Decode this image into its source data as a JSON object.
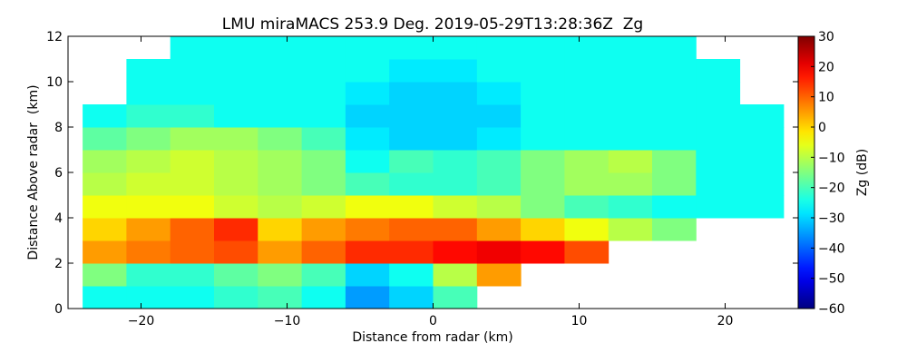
{
  "chart_data": {
    "type": "heatmap",
    "title": "LMU miraMACS 253.9 Deg. 2019-05-29T13:28:36Z  Zg",
    "x_label": "Distance from radar (km)",
    "y_label": "Distance Above radar  (km)",
    "colorbar_label": "Zg (dB)",
    "colormap": "jet",
    "xlim": [
      -25,
      25
    ],
    "ylim": [
      0,
      12
    ],
    "clim": [
      -60,
      30
    ],
    "xticks": [
      {
        "value": -20,
        "label": "−20"
      },
      {
        "value": -10,
        "label": "−10"
      },
      0,
      10,
      20
    ],
    "yticks": [
      0,
      2,
      4,
      6,
      8,
      10,
      12
    ],
    "cticks": [
      {
        "value": -60,
        "label": "−60"
      },
      {
        "value": -50,
        "label": "−50"
      },
      {
        "value": -40,
        "label": "−40"
      },
      {
        "value": -30,
        "label": "−30"
      },
      {
        "value": -20,
        "label": "−20"
      },
      {
        "value": -10,
        "label": "−10"
      },
      0,
      10,
      20,
      30
    ],
    "x": [
      -22.5,
      -19.5,
      -16.5,
      -13.5,
      -10.5,
      -7.5,
      -4.5,
      -1.5,
      1.5,
      4.5,
      7.5,
      10.5,
      13.5,
      16.5,
      19.5,
      22.5
    ],
    "y": [
      0.5,
      1.5,
      2.5,
      3.5,
      4.5,
      5.5,
      6.5,
      7.5,
      8.5,
      9.5,
      10.5,
      11.5
    ],
    "z": [
      [
        -25,
        -25,
        -25,
        -22,
        -20,
        -25,
        -35,
        -30,
        -20,
        null,
        null,
        null,
        null,
        null,
        null,
        null
      ],
      [
        -15,
        -22,
        -22,
        -18,
        -15,
        -20,
        -30,
        -25,
        -10,
        5,
        null,
        null,
        null,
        null,
        null,
        null
      ],
      [
        5,
        8,
        10,
        12,
        5,
        10,
        15,
        15,
        18,
        20,
        18,
        12,
        null,
        null,
        null,
        null
      ],
      [
        0,
        5,
        10,
        15,
        0,
        5,
        8,
        10,
        10,
        5,
        0,
        -5,
        -10,
        -15,
        null,
        null
      ],
      [
        -5,
        -5,
        -5,
        -8,
        -10,
        -8,
        -5,
        -5,
        -8,
        -10,
        -15,
        -20,
        -22,
        -25,
        -25,
        -25
      ],
      [
        -10,
        -8,
        -8,
        -10,
        -12,
        -15,
        -20,
        -22,
        -22,
        -20,
        -15,
        -12,
        -12,
        -15,
        -25,
        -25
      ],
      [
        -12,
        -10,
        -8,
        -10,
        -12,
        -15,
        -25,
        -20,
        -22,
        -20,
        -15,
        -12,
        -10,
        -15,
        -25,
        -25
      ],
      [
        -18,
        -15,
        -12,
        -12,
        -15,
        -20,
        -28,
        -30,
        -30,
        -28,
        -25,
        -25,
        -25,
        -25,
        -25,
        -25
      ],
      [
        -25,
        -22,
        -22,
        -25,
        -25,
        -25,
        -30,
        -30,
        -30,
        -30,
        -25,
        -25,
        -25,
        -25,
        -25,
        -25
      ],
      [
        null,
        -25,
        -25,
        -25,
        -25,
        -25,
        -28,
        -30,
        -30,
        -28,
        -25,
        -25,
        -25,
        -25,
        -25,
        null
      ],
      [
        null,
        -25,
        -25,
        -25,
        -25,
        -25,
        -25,
        -28,
        -28,
        -25,
        -25,
        -25,
        -25,
        -25,
        -25,
        null
      ],
      [
        null,
        null,
        -25,
        -25,
        -25,
        -25,
        -25,
        -25,
        -25,
        -25,
        -25,
        -25,
        -25,
        -25,
        null,
        null
      ]
    ]
  }
}
